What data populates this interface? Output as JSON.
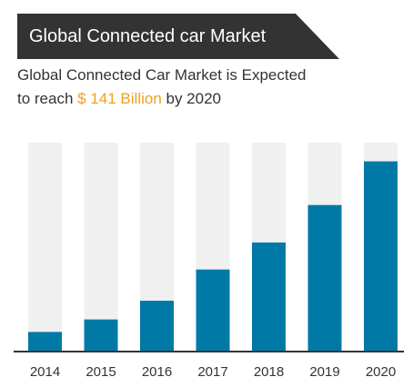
{
  "banner": {
    "title": "Global Connected car Market"
  },
  "subtitle": {
    "line1": "Global Connected Car Market is Expected",
    "pre": "to reach ",
    "highlight": "$ 141 Billion",
    "post": " by 2020"
  },
  "colors": {
    "banner_bg": "#333333",
    "bar": "#0079a6",
    "track": "#f0f0f0",
    "highlight": "#f0a01e"
  },
  "chart_data": {
    "type": "bar",
    "categories": [
      "2014",
      "2015",
      "2016",
      "2017",
      "2018",
      "2019",
      "2020"
    ],
    "values": [
      9,
      15,
      24,
      39,
      52,
      70,
      91
    ],
    "ylim": [
      0,
      100
    ],
    "title": "",
    "xlabel": "",
    "ylabel": "",
    "grid": false
  }
}
